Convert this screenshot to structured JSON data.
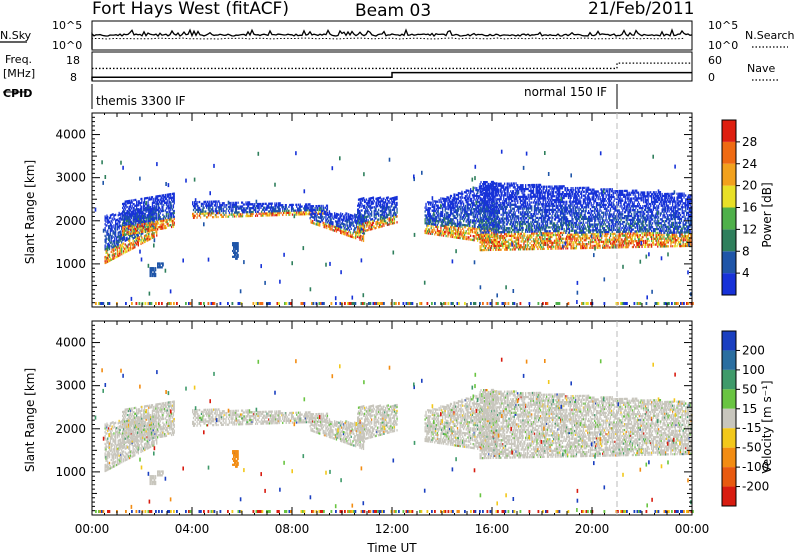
{
  "header": {
    "station": "Fort Hays West (fitACF)",
    "beam": "Beam 03",
    "date": "21/Feb/2011"
  },
  "status_panels": {
    "nsky_label": "N.Sky",
    "nsky_ticks": [
      "10^5",
      "10^0"
    ],
    "nsearch_label": "N.Search",
    "nsearch_ticks": [
      "10^5",
      "10^0"
    ],
    "freq_label_line1": "Freq.",
    "freq_label_line2": "[MHz]",
    "freq_ticks": [
      "18",
      "8"
    ],
    "nave_label": "Nave",
    "nave_ticks": [
      "60",
      "0"
    ],
    "cpid_label": "CPID",
    "cpid_segments": [
      {
        "label": "themis 3300 IF",
        "start_hour": 0,
        "end_hour": 21.0
      },
      {
        "label": "normal 150 IF",
        "start_hour": 21.0,
        "end_hour": 24
      }
    ],
    "freq_step": {
      "before_mhz": 9.3,
      "after_mhz": 10.9,
      "switch_hour": 12.0
    },
    "nave_step": {
      "before": 26,
      "after": 37,
      "switch_hour": 21.0
    }
  },
  "chart_data": [
    {
      "type": "heatmap",
      "name": "power",
      "ylabel": "Slant Range [km]",
      "ylim": [
        0,
        4500
      ],
      "yticks": [
        1000,
        2000,
        3000,
        4000
      ],
      "xlim_hours": [
        0,
        24
      ],
      "xticks": [
        "00:00",
        "04:00",
        "08:00",
        "12:00",
        "16:00",
        "20:00",
        "00:00"
      ],
      "colorbar": {
        "label": "Power [dB]",
        "ticks": [
          "4",
          "8",
          "12",
          "16",
          "20",
          "24",
          "28"
        ],
        "colors": [
          "#1732d8",
          "#1f55a8",
          "#2f7f5c",
          "#4fb04a",
          "#e8e027",
          "#f2a11d",
          "#ef6a12",
          "#de1f10"
        ]
      },
      "echo_bands": [
        {
          "t0": 0.5,
          "t1": 2.6,
          "r_low": [
            1000,
            1650
          ],
          "r_high": [
            2100,
            2350
          ]
        },
        {
          "t0": 1.2,
          "t1": 3.3,
          "r_low": [
            1650,
            1850
          ],
          "r_high": [
            2450,
            2650
          ]
        },
        {
          "t0": 4.0,
          "t1": 9.4,
          "r_low": [
            2050,
            2150
          ],
          "r_high": [
            2450,
            2350
          ]
        },
        {
          "t0": 8.7,
          "t1": 10.9,
          "r_low": [
            1950,
            1500
          ],
          "r_high": [
            2250,
            2100
          ]
        },
        {
          "t0": 10.6,
          "t1": 12.2,
          "r_low": [
            1700,
            1950
          ],
          "r_high": [
            2500,
            2550
          ]
        },
        {
          "t0": 13.3,
          "t1": 16.2,
          "r_low": [
            1700,
            1450
          ],
          "r_high": [
            2400,
            2900
          ]
        },
        {
          "t0": 15.5,
          "t1": 24.0,
          "r_low": [
            1300,
            1400
          ],
          "r_high": [
            2900,
            2600
          ]
        }
      ]
    },
    {
      "type": "heatmap",
      "name": "velocity",
      "ylabel": "Slant Range [km]",
      "ylim": [
        0,
        4500
      ],
      "yticks": [
        1000,
        2000,
        3000,
        4000
      ],
      "xlim_hours": [
        0,
        24
      ],
      "xticks": [
        "00:00",
        "04:00",
        "08:00",
        "12:00",
        "16:00",
        "20:00",
        "00:00"
      ],
      "xlabel": "Time UT",
      "colorbar": {
        "label": "Velocity [m s⁻¹]",
        "ticks": [
          "200",
          "100",
          "50",
          "15",
          "-15",
          "-50",
          "-100",
          "-200"
        ],
        "colors": [
          "#1a3fc0",
          "#2a6ea0",
          "#3f9a6a",
          "#69c441",
          "#c8c6bd",
          "#f2c81b",
          "#f28c12",
          "#e85a10",
          "#d81c10"
        ]
      }
    }
  ],
  "separator_hour": 21.0
}
